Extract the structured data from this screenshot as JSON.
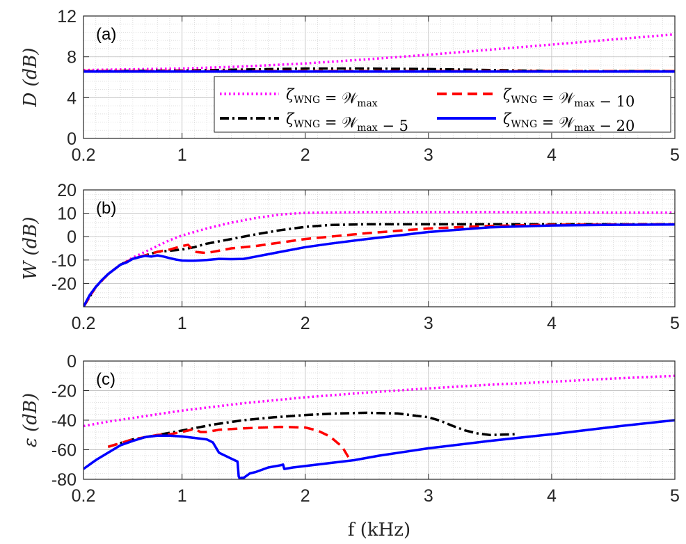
{
  "chart_data": [
    {
      "type": "line",
      "panel_label": "(a)",
      "ylabel": "D (dB)",
      "xlabel": "",
      "xlim": [
        0.2,
        5
      ],
      "ylim": [
        0,
        12
      ],
      "xticks": [
        0.2,
        1,
        2,
        3,
        4,
        5
      ],
      "xtick_labels": [
        "0.2",
        "1",
        "2",
        "3",
        "4",
        "5"
      ],
      "yticks": [
        0,
        4,
        8,
        12
      ],
      "ytick_labels": [
        "0",
        "4",
        "8",
        "12"
      ],
      "grid": true,
      "legend_position": "right, middle",
      "series": [
        {
          "name": "ζWNG = Wmax",
          "style": "dotted",
          "color": "#ff00ff",
          "x": [
            0.2,
            1,
            1.5,
            2,
            2.5,
            3,
            3.5,
            4,
            4.5,
            5
          ],
          "y": [
            6.7,
            6.85,
            7.05,
            7.35,
            7.75,
            8.2,
            8.7,
            9.2,
            9.7,
            10.2
          ]
        },
        {
          "name": "ζWNG = Wmax − 5",
          "style": "dashdot",
          "color": "#000000",
          "x": [
            0.2,
            1,
            1.5,
            2,
            2.5,
            3,
            3.5,
            4,
            5
          ],
          "y": [
            6.6,
            6.65,
            6.75,
            6.85,
            6.85,
            6.8,
            6.7,
            6.6,
            6.6
          ]
        },
        {
          "name": "ζWNG = Wmax − 10",
          "style": "dashed",
          "color": "#ff0000",
          "x": [
            0.2,
            1,
            2,
            3,
            4,
            5
          ],
          "y": [
            6.6,
            6.6,
            6.6,
            6.6,
            6.6,
            6.6
          ]
        },
        {
          "name": "ζWNG = Wmax − 20",
          "style": "solid",
          "color": "#0000ff",
          "x": [
            0.2,
            1,
            2,
            3,
            4,
            5
          ],
          "y": [
            6.55,
            6.55,
            6.55,
            6.55,
            6.55,
            6.55
          ]
        }
      ]
    },
    {
      "type": "line",
      "panel_label": "(b)",
      "ylabel": "W (dB)",
      "xlabel": "",
      "xlim": [
        0.2,
        5
      ],
      "ylim": [
        -30,
        20
      ],
      "xticks": [
        0.2,
        1,
        2,
        3,
        4,
        5
      ],
      "xtick_labels": [
        "0.2",
        "1",
        "2",
        "3",
        "4",
        "5"
      ],
      "yticks": [
        -20,
        -10,
        0,
        10,
        20
      ],
      "ytick_labels": [
        "-20",
        "-10",
        "0",
        "10",
        "20"
      ],
      "grid": true,
      "series": [
        {
          "name": "ζWNG = Wmax",
          "style": "dotted",
          "color": "#ff00ff",
          "x": [
            0.2,
            0.3,
            0.4,
            0.5,
            0.6,
            0.7,
            0.8,
            0.9,
            1.0,
            1.2,
            1.4,
            1.6,
            1.8,
            2.0,
            2.5,
            3,
            3.5,
            4,
            4.5,
            5
          ],
          "y": [
            -30,
            -21.5,
            -16,
            -12,
            -9,
            -6.5,
            -4,
            -1.5,
            0.5,
            3.5,
            6,
            8,
            9.5,
            10.2,
            10.5,
            10.5,
            10.5,
            10.4,
            10.3,
            10.3
          ]
        },
        {
          "name": "ζWNG = Wmax − 5",
          "style": "dashdot",
          "color": "#000000",
          "x": [
            0.2,
            0.3,
            0.4,
            0.5,
            0.6,
            0.7,
            0.8,
            0.9,
            1.0,
            1.1,
            1.2,
            1.4,
            1.6,
            1.8,
            2.0,
            2.2,
            2.5,
            3,
            3.5,
            4,
            5
          ],
          "y": [
            -30,
            -21.5,
            -16,
            -12,
            -9.5,
            -8,
            -6.5,
            -6,
            -5.5,
            -4.5,
            -3,
            -1,
            1,
            2.8,
            4.2,
            5,
            5.3,
            5.3,
            5.3,
            5.3,
            5.3
          ]
        },
        {
          "name": "ζWNG = Wmax − 10",
          "style": "dashed",
          "color": "#ff0000",
          "x": [
            0.2,
            0.3,
            0.4,
            0.5,
            0.6,
            0.7,
            0.8,
            0.9,
            1.0,
            1.05,
            1.1,
            1.2,
            1.3,
            1.4,
            1.6,
            1.8,
            2.0,
            2.2,
            2.5,
            3.0,
            3.5,
            4.0,
            5.0
          ],
          "y": [
            -30,
            -21.5,
            -16,
            -12,
            -9.5,
            -8,
            -6.5,
            -5.5,
            -4,
            -3.5,
            -6.5,
            -7,
            -6,
            -5,
            -4,
            -2.5,
            -1,
            0,
            1.5,
            3.5,
            4.6,
            5.1,
            5.3
          ]
        },
        {
          "name": "ζWNG = Wmax − 20",
          "style": "solid",
          "color": "#0000ff",
          "x": [
            0.2,
            0.25,
            0.3,
            0.35,
            0.4,
            0.45,
            0.5,
            0.55,
            0.6,
            0.65,
            0.7,
            0.75,
            0.8,
            0.85,
            0.9,
            0.95,
            1.0,
            1.05,
            1.1,
            1.2,
            1.3,
            1.4,
            1.5,
            1.6,
            1.8,
            2.0,
            2.2,
            2.5,
            3.0,
            3.5,
            4.0,
            4.5,
            5.0
          ],
          "y": [
            -30,
            -25,
            -21.5,
            -18.5,
            -16,
            -14,
            -12,
            -11,
            -9.5,
            -8.8,
            -8.2,
            -8.5,
            -8,
            -8.5,
            -9.2,
            -9.8,
            -10.2,
            -10.3,
            -10.3,
            -10,
            -9.5,
            -9.6,
            -9.5,
            -8.5,
            -6.5,
            -4.5,
            -3,
            -1,
            2,
            4,
            4.8,
            5.1,
            5.2
          ]
        }
      ]
    },
    {
      "type": "line",
      "panel_label": "(c)",
      "ylabel": "ε (dB)",
      "xlabel": "f (kHz)",
      "xlim": [
        0.2,
        5
      ],
      "ylim": [
        -80,
        0
      ],
      "xticks": [
        0.2,
        1,
        2,
        3,
        4,
        5
      ],
      "xtick_labels": [
        "0.2",
        "1",
        "2",
        "3",
        "4",
        "5"
      ],
      "yticks": [
        -80,
        -60,
        -40,
        -20,
        0
      ],
      "ytick_labels": [
        "-80",
        "-60",
        "-40",
        "-20",
        "0"
      ],
      "grid": true,
      "series": [
        {
          "name": "ζWNG = Wmax",
          "style": "dotted",
          "color": "#ff00ff",
          "x": [
            0.2,
            0.4,
            0.6,
            0.8,
            1.0,
            1.25,
            1.5,
            1.75,
            2.0,
            2.5,
            3.0,
            3.5,
            4.0,
            4.5,
            5.0
          ],
          "y": [
            -44,
            -41,
            -38.5,
            -36,
            -33.5,
            -31,
            -28.5,
            -26.5,
            -24.5,
            -21.3,
            -18.5,
            -16,
            -14,
            -11.8,
            -10
          ]
        },
        {
          "name": "ζWNG = Wmax − 5",
          "style": "dashdot",
          "color": "#000000",
          "x": [
            0.4,
            0.6,
            0.8,
            1.0,
            1.25,
            1.5,
            1.75,
            2.0,
            2.25,
            2.5,
            2.75,
            3.0,
            3.1,
            3.2,
            3.3,
            3.4,
            3.5,
            3.6,
            3.7
          ],
          "y": [
            -58,
            -53,
            -50,
            -47,
            -43,
            -40,
            -38,
            -36.5,
            -35.5,
            -35,
            -35.5,
            -38,
            -40.5,
            -44,
            -47,
            -49,
            -50,
            -49.8,
            -49.5
          ]
        },
        {
          "name": "ζWNG = Wmax − 10",
          "style": "dashed",
          "color": "#ff0000",
          "x": [
            0.4,
            0.6,
            0.8,
            0.9,
            1.0,
            1.1,
            1.15,
            1.2,
            1.3,
            1.5,
            1.8,
            2.0,
            2.1,
            2.2,
            2.3,
            2.35
          ],
          "y": [
            -58,
            -53,
            -50,
            -49.5,
            -48,
            -46,
            -48,
            -48,
            -46.5,
            -45.5,
            -44.5,
            -45,
            -47,
            -51,
            -58,
            -65
          ]
        },
        {
          "name": "ζWNG = Wmax − 20",
          "style": "solid",
          "color": "#0000ff",
          "x": [
            0.2,
            0.3,
            0.4,
            0.5,
            0.6,
            0.7,
            0.8,
            0.9,
            1.0,
            1.1,
            1.2,
            1.25,
            1.3,
            1.4,
            1.45,
            1.46,
            1.47,
            1.48,
            1.5,
            1.55,
            1.6,
            1.7,
            1.8,
            1.82,
            1.83,
            1.9,
            2.0,
            2.2,
            2.4,
            2.6,
            2.8,
            3.0,
            3.5,
            4.0,
            4.5,
            5.0
          ],
          "y": [
            -73,
            -67,
            -62,
            -57,
            -54,
            -51.5,
            -50.5,
            -50.5,
            -51,
            -52,
            -53,
            -55,
            -62,
            -66,
            -68,
            -78,
            -80,
            -79,
            -79,
            -76,
            -75,
            -72,
            -70.5,
            -70,
            -73,
            -72,
            -71,
            -69,
            -67,
            -64,
            -61.5,
            -59,
            -54,
            -49.5,
            -44.5,
            -40
          ]
        }
      ]
    }
  ],
  "legend": {
    "entries": [
      {
        "lhs": "ζ",
        "sub": "WNG",
        "rhs": "= 𝒲",
        "rhs_sub": "max",
        "tail": ""
      },
      {
        "lhs": "ζ",
        "sub": "WNG",
        "rhs": "= 𝒲",
        "rhs_sub": "max",
        "tail": " − 10"
      },
      {
        "lhs": "ζ",
        "sub": "WNG",
        "rhs": "= 𝒲",
        "rhs_sub": "max",
        "tail": " − 5"
      },
      {
        "lhs": "ζ",
        "sub": "WNG",
        "rhs": "= 𝒲",
        "rhs_sub": "max",
        "tail": " − 20"
      }
    ]
  }
}
